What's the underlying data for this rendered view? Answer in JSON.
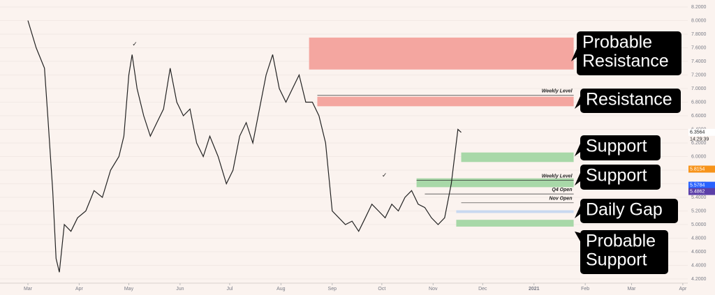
{
  "chart_data": {
    "type": "line",
    "series": [
      {
        "name": "Price",
        "color": "#222222",
        "x": [
          0,
          5,
          10,
          12,
          15,
          17,
          19,
          22,
          26,
          30,
          35,
          40,
          45,
          50,
          55,
          58,
          61,
          63,
          66,
          70,
          74,
          78,
          82,
          86,
          90,
          94,
          98,
          102,
          106,
          110,
          115,
          120,
          124,
          128,
          132,
          136,
          140,
          144,
          148,
          152,
          156,
          160,
          164,
          168,
          172,
          176,
          180,
          184,
          188,
          192,
          196,
          200,
          204,
          208,
          212,
          216,
          220,
          224,
          228,
          232,
          236,
          240,
          244,
          248,
          252,
          256,
          260,
          262
        ],
        "values": [
          8.0,
          7.6,
          7.3,
          6.6,
          5.5,
          4.5,
          4.3,
          5.0,
          4.9,
          5.1,
          5.2,
          5.5,
          5.4,
          5.8,
          6.0,
          6.3,
          7.2,
          7.5,
          7.0,
          6.6,
          6.3,
          6.5,
          6.7,
          7.3,
          6.8,
          6.6,
          6.7,
          6.2,
          6.0,
          6.3,
          6.0,
          5.6,
          5.8,
          6.3,
          6.5,
          6.2,
          6.7,
          7.2,
          7.5,
          7.0,
          6.8,
          7.0,
          7.2,
          6.8,
          6.8,
          6.6,
          6.2,
          5.2,
          5.1,
          5.0,
          5.05,
          4.9,
          5.1,
          5.3,
          5.2,
          5.1,
          5.3,
          5.2,
          5.4,
          5.5,
          5.3,
          5.25,
          5.1,
          5.0,
          5.1,
          5.6,
          6.4,
          6.3564
        ]
      }
    ],
    "xlim": [
      0,
      399
    ],
    "ylim": [
      4.1,
      8.3
    ],
    "xticks": [
      {
        "value": 0,
        "label": "Mar"
      },
      {
        "value": 31,
        "label": "Apr"
      },
      {
        "value": 61,
        "label": "May"
      },
      {
        "value": 92,
        "label": "Jun"
      },
      {
        "value": 122,
        "label": "Jul"
      },
      {
        "value": 153,
        "label": "Aug"
      },
      {
        "value": 184,
        "label": "Sep"
      },
      {
        "value": 214,
        "label": "Oct"
      },
      {
        "value": 245,
        "label": "Nov"
      },
      {
        "value": 275,
        "label": "Dec"
      },
      {
        "value": 306,
        "label": "2021"
      },
      {
        "value": 337,
        "label": "Feb"
      },
      {
        "value": 365,
        "label": "Mar"
      },
      {
        "value": 396,
        "label": "Apr"
      }
    ],
    "yticks": [
      {
        "value": 4.2,
        "label": "4.2000"
      },
      {
        "value": 4.4,
        "label": "4.4000"
      },
      {
        "value": 4.6,
        "label": "4.6000"
      },
      {
        "value": 4.8,
        "label": "4.8000"
      },
      {
        "value": 5.0,
        "label": "5.0000"
      },
      {
        "value": 5.2,
        "label": "5.2000"
      },
      {
        "value": 5.4,
        "label": "5.4000"
      },
      {
        "value": 5.6,
        "label": "5.6000"
      },
      {
        "value": 5.8,
        "label": "5.8000"
      },
      {
        "value": 6.0,
        "label": "6.0000"
      },
      {
        "value": 6.2,
        "label": "6.2000"
      },
      {
        "value": 6.4,
        "label": "6.4000"
      },
      {
        "value": 6.6,
        "label": "6.6000"
      },
      {
        "value": 6.8,
        "label": "6.8000"
      },
      {
        "value": 7.0,
        "label": "7.0000"
      },
      {
        "value": 7.2,
        "label": "7.2000"
      },
      {
        "value": 7.4,
        "label": "7.4000"
      },
      {
        "value": 7.6,
        "label": "7.6000"
      },
      {
        "value": 7.8,
        "label": "7.8000"
      },
      {
        "value": 8.0,
        "label": "8.0000"
      },
      {
        "value": 8.2,
        "label": "8.2000"
      }
    ],
    "zones": [
      {
        "low": 7.28,
        "high": 7.75,
        "x_start": 170,
        "x_end": 330,
        "color": "#f4a6a0"
      },
      {
        "low": 6.74,
        "high": 6.88,
        "x_start": 175,
        "x_end": 330,
        "color": "#f4a6a0"
      },
      {
        "low": 5.92,
        "high": 6.06,
        "x_start": 262,
        "x_end": 330,
        "color": "#a8d8a8"
      },
      {
        "low": 5.55,
        "high": 5.68,
        "x_start": 235,
        "x_end": 330,
        "color": "#a8d8a8"
      },
      {
        "low": 5.17,
        "high": 5.21,
        "x_start": 259,
        "x_end": 330,
        "color": "#c8d8f0"
      },
      {
        "low": 4.97,
        "high": 5.07,
        "x_start": 259,
        "x_end": 330,
        "color": "#a8d8a8"
      }
    ],
    "levels": [
      {
        "label": "Weekly Level",
        "value": 6.9,
        "x_start": 175
      },
      {
        "label": "Weekly Level",
        "value": 5.65,
        "x_start": 235
      },
      {
        "label": "Q4 Open",
        "value": 5.45,
        "x_start": 240
      },
      {
        "label": "Nov Open",
        "value": 5.32,
        "x_start": 262
      }
    ],
    "price_markers": [
      {
        "value": 6.3564,
        "color": "#ffffff"
      },
      {
        "value": 5.8154,
        "color": "#f7931a"
      },
      {
        "value": 5.5784,
        "color": "#2962ff"
      },
      {
        "value": 5.4862,
        "color": "#5b3fa8"
      }
    ],
    "countdown": "14:29:39",
    "checkmarks": [
      "✓",
      "✓"
    ],
    "annotations": [
      {
        "lines": [
          "Probable",
          "Resistance"
        ]
      },
      {
        "lines": [
          "Resistance"
        ]
      },
      {
        "lines": [
          "Support"
        ]
      },
      {
        "lines": [
          "Support"
        ]
      },
      {
        "lines": [
          "Daily Gap"
        ]
      },
      {
        "lines": [
          "Probable",
          "Support"
        ]
      }
    ]
  }
}
